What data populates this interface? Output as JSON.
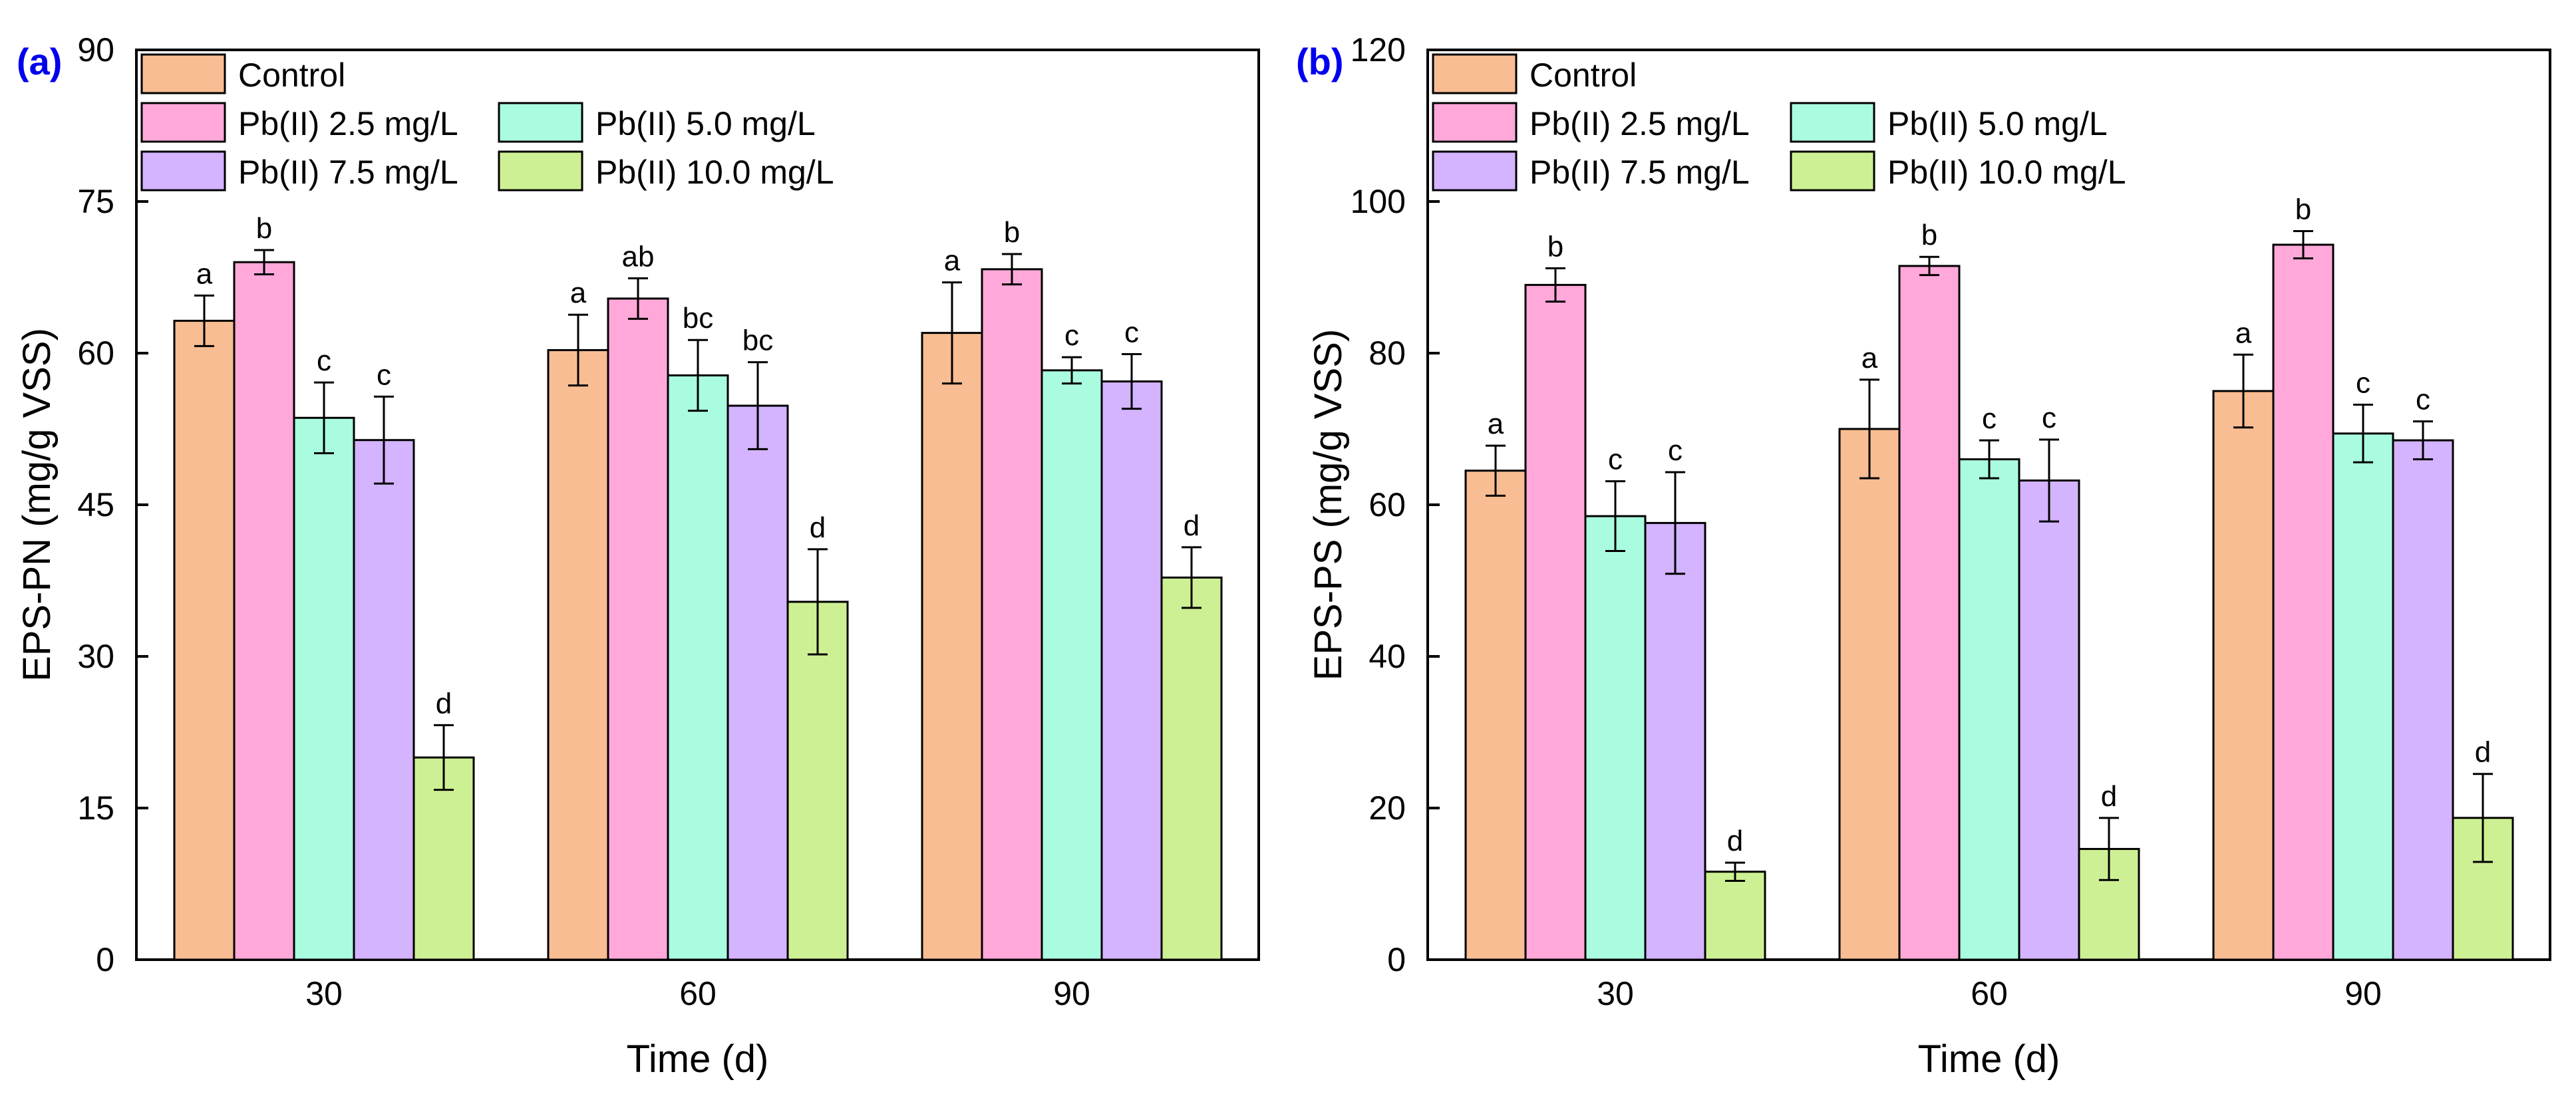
{
  "chart_data": [
    {
      "type": "bar",
      "panel_label": "(a)",
      "title": "",
      "xlabel": "Time (d)",
      "ylabel": "EPS-PN (mg/g VSS)",
      "categories": [
        "30",
        "60",
        "90"
      ],
      "ylim": [
        0,
        90
      ],
      "yticks": [
        "0",
        "15",
        "30",
        "45",
        "60",
        "75",
        "90"
      ],
      "grid": false,
      "legend_position": "top-left",
      "series": [
        {
          "name": "Control",
          "color": "#f8bd92",
          "values": [
            63.2,
            60.3,
            62.0
          ],
          "errors": [
            2.5,
            3.5,
            5.0
          ],
          "labels": [
            "a",
            "a",
            "a"
          ]
        },
        {
          "name": "Pb(II) 2.5 mg/L",
          "color": "#ffa8d9",
          "values": [
            69.0,
            65.4,
            68.3
          ],
          "errors": [
            1.2,
            2.0,
            1.5
          ],
          "labels": [
            "b",
            "ab",
            "b"
          ]
        },
        {
          "name": "Pb(II) 5.0 mg/L",
          "color": "#aafce0",
          "values": [
            53.6,
            57.8,
            58.3
          ],
          "errors": [
            3.5,
            3.5,
            1.3
          ],
          "labels": [
            "c",
            "bc",
            "c"
          ]
        },
        {
          "name": "Pb(II) 7.5 mg/L",
          "color": "#d4b3ff",
          "values": [
            51.4,
            54.8,
            57.2
          ],
          "errors": [
            4.3,
            4.3,
            2.7
          ],
          "labels": [
            "c",
            "bc",
            "c"
          ]
        },
        {
          "name": "Pb(II) 10.0 mg/L",
          "color": "#cef094",
          "values": [
            20.0,
            35.4,
            37.8
          ],
          "errors": [
            3.2,
            5.2,
            3.0
          ],
          "labels": [
            "d",
            "d",
            "d"
          ]
        }
      ]
    },
    {
      "type": "bar",
      "panel_label": "(b)",
      "title": "",
      "xlabel": "Time (d)",
      "ylabel": "EPS-PS (mg/g VSS)",
      "categories": [
        "30",
        "60",
        "90"
      ],
      "ylim": [
        0,
        120
      ],
      "yticks": [
        "0",
        "20",
        "40",
        "60",
        "80",
        "100",
        "120"
      ],
      "grid": false,
      "legend_position": "top-left",
      "series": [
        {
          "name": "Control",
          "color": "#f8bd92",
          "values": [
            64.5,
            70.0,
            75.0
          ],
          "errors": [
            3.3,
            6.5,
            4.8
          ],
          "labels": [
            "a",
            "a",
            "a"
          ]
        },
        {
          "name": "Pb(II) 2.5 mg/L",
          "color": "#ffa8d9",
          "values": [
            89.0,
            91.5,
            94.3
          ],
          "errors": [
            2.2,
            1.2,
            1.8
          ],
          "labels": [
            "b",
            "b",
            "b"
          ]
        },
        {
          "name": "Pb(II) 5.0 mg/L",
          "color": "#aafce0",
          "values": [
            58.5,
            66.0,
            69.4
          ],
          "errors": [
            4.6,
            2.5,
            3.8
          ],
          "labels": [
            "c",
            "c",
            "c"
          ]
        },
        {
          "name": "Pb(II) 7.5 mg/L",
          "color": "#d4b3ff",
          "values": [
            57.6,
            63.2,
            68.5
          ],
          "errors": [
            6.7,
            5.4,
            2.5
          ],
          "labels": [
            "c",
            "c",
            "c"
          ]
        },
        {
          "name": "Pb(II) 10.0 mg/L",
          "color": "#cef094",
          "values": [
            11.6,
            14.6,
            18.7
          ],
          "errors": [
            1.2,
            4.1,
            5.8
          ],
          "labels": [
            "d",
            "d",
            "d"
          ]
        }
      ]
    }
  ]
}
